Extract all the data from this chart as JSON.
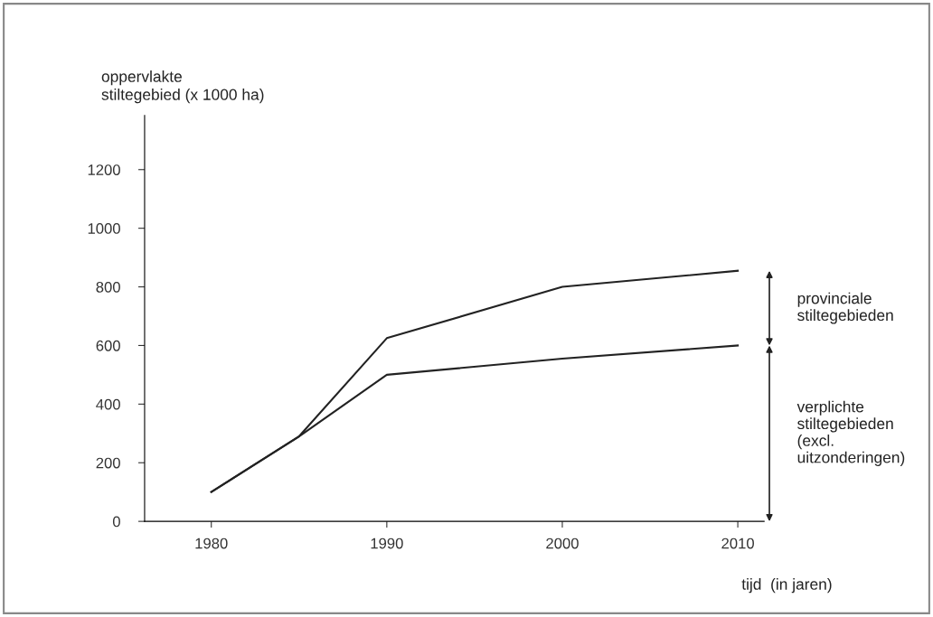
{
  "chart_data": {
    "type": "line",
    "ylabel": "oppervlakte\nstiltegebied (x 1000 ha)",
    "xlabel": "tijd  (in jaren)",
    "x": [
      1980,
      1985,
      1990,
      2000,
      2010
    ],
    "series": [
      {
        "color": "#222222",
        "values": [
          100,
          290,
          625,
          800,
          855
        ]
      },
      {
        "color": "#222222",
        "values": [
          100,
          290,
          500,
          555,
          600
        ]
      }
    ],
    "xlim": [
      1976.2,
      2011.5
    ],
    "xticks": [
      1980,
      1990,
      2000,
      2010
    ],
    "ylim": [
      0,
      1385
    ],
    "yticks": [
      0,
      200,
      400,
      600,
      800,
      1000,
      1200
    ],
    "grid": false,
    "legend": false,
    "marker": "none",
    "line_style": "solid",
    "annotations": [
      "provinciale\nstiltegebieden",
      "verplichte\nstiltegebieden\n(excl.\nuitzonderingen)"
    ]
  }
}
